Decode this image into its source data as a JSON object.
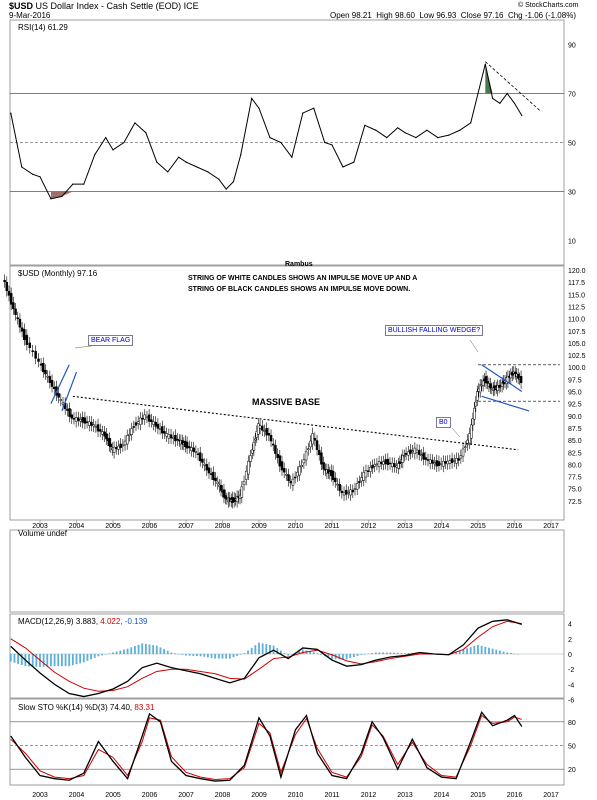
{
  "header": {
    "symbol": "$USD",
    "name": "US Dollar Index - Cash Settle (EOD)",
    "exchange": "ICE",
    "date": "9-Mar-2016",
    "ohlc": {
      "open": "Open 98.21",
      "high": "High 98.60",
      "low": "Low 96.93",
      "close": "Close 97.16",
      "chg": "Chg -1.06 (-1.08%)"
    },
    "credit": "© StockCharts.com"
  },
  "panels": {
    "rsi": {
      "label": "RSI(14) 61.29",
      "ticks": [
        "90",
        "70",
        "50",
        "30",
        "10"
      ],
      "footer": "Rambus"
    },
    "price": {
      "label": "$USD (Monthly) 97.16"
    },
    "volume": {
      "label": "Volume undef"
    },
    "macd": {
      "label_name": "MACD(12,26,9)",
      "label_macd": "3.883,",
      "label_signal": "4.022,",
      "label_hist": "-0.139",
      "ticks": [
        "4",
        "2",
        "0",
        "-2",
        "-4",
        "-6"
      ]
    },
    "sto": {
      "label_name": "Slow STO %K(14) %D(3)",
      "label_k": "74.40,",
      "label_d": "83.31",
      "ticks": [
        "80",
        "50",
        "20"
      ]
    }
  },
  "annotations": {
    "impulse_line1": "STRING OF WHITE CANDLES SHOWS AN IMPULSE MOVE UP AND A",
    "impulse_line2": "STRING OF BLACK CANDLES SHOWS AN IMPULSE MOVE DOWN.",
    "massive_base": "MASSIVE BASE",
    "bear_flag": "BEAR FLAG",
    "bullish_wedge": "BULLISH FALLING WEDGE?",
    "bo": "B0"
  },
  "colors": {
    "accent": "#1f57c8",
    "rsi_oversold": "#a06f6a",
    "rsi_overbought": "#4a7a4a",
    "macd_hist": "#5ab0d8",
    "signal": "#d00000"
  },
  "chart_data": [
    {
      "type": "line",
      "title": "RSI(14) 61.29",
      "x": [
        2002.2,
        2002.5,
        2002.8,
        2003.0,
        2003.3,
        2003.6,
        2003.9,
        2004.2,
        2004.5,
        2004.8,
        2005.0,
        2005.3,
        2005.6,
        2005.9,
        2006.2,
        2006.5,
        2006.8,
        2007.0,
        2007.3,
        2007.6,
        2007.9,
        2008.1,
        2008.3,
        2008.5,
        2008.8,
        2009.0,
        2009.3,
        2009.6,
        2009.9,
        2010.2,
        2010.5,
        2010.8,
        2011.0,
        2011.3,
        2011.6,
        2011.9,
        2012.2,
        2012.5,
        2012.8,
        2013.0,
        2013.3,
        2013.6,
        2013.9,
        2014.2,
        2014.5,
        2014.8,
        2015.0,
        2015.2,
        2015.4,
        2015.6,
        2015.8,
        2016.0,
        2016.2
      ],
      "y": [
        62,
        40,
        37,
        36,
        27,
        28,
        33,
        33,
        45,
        52,
        47,
        50,
        58,
        54,
        42,
        38,
        44,
        42,
        40,
        38,
        35,
        31,
        34,
        45,
        68,
        64,
        52,
        50,
        44,
        62,
        64,
        50,
        49,
        40,
        42,
        57,
        55,
        52,
        56,
        54,
        52,
        55,
        52,
        53,
        55,
        58,
        70,
        82,
        68,
        66,
        70,
        66,
        61
      ],
      "ylim": [
        0,
        100
      ],
      "ref_lines": [
        70,
        50,
        30
      ]
    },
    {
      "type": "line",
      "title": "$USD (Monthly) 97.16",
      "x": [
        2002.0,
        2002.3,
        2002.6,
        2003.0,
        2003.3,
        2003.6,
        2003.9,
        2004.2,
        2004.5,
        2004.8,
        2005.0,
        2005.3,
        2005.6,
        2005.9,
        2006.2,
        2006.5,
        2006.8,
        2007.0,
        2007.3,
        2007.6,
        2007.9,
        2008.1,
        2008.3,
        2008.5,
        2008.8,
        2009.0,
        2009.3,
        2009.6,
        2009.9,
        2010.2,
        2010.5,
        2010.8,
        2011.0,
        2011.3,
        2011.6,
        2011.9,
        2012.2,
        2012.5,
        2012.8,
        2013.0,
        2013.3,
        2013.6,
        2013.9,
        2014.2,
        2014.5,
        2014.8,
        2015.0,
        2015.2,
        2015.4,
        2015.6,
        2015.8,
        2016.0,
        2016.2
      ],
      "y": [
        118.5,
        112,
        106,
        101,
        97,
        93,
        89.5,
        89,
        88,
        86,
        83,
        84,
        88,
        90,
        88,
        86,
        85,
        84,
        82.5,
        79,
        76,
        73,
        72.5,
        73.5,
        82,
        88,
        86,
        80,
        76,
        80,
        86,
        79,
        78,
        74,
        74.5,
        78,
        80,
        80.5,
        79.5,
        82,
        83,
        81,
        80,
        80.5,
        81,
        86,
        95,
        97.5,
        95.5,
        96,
        97.5,
        99,
        97.16
      ],
      "ylim": [
        70,
        120
      ],
      "x_ticks": [
        "2003",
        "2004",
        "2005",
        "2006",
        "2007",
        "2008",
        "2009",
        "2010",
        "2011",
        "2012",
        "2013",
        "2014",
        "2015",
        "2016",
        "2017"
      ],
      "y_ticks": [
        "120.0",
        "117.5",
        "115.0",
        "112.5",
        "110.0",
        "107.5",
        "105.0",
        "102.5",
        "100.0",
        "97.5",
        "95.0",
        "92.5",
        "90.0",
        "87.5",
        "85.0",
        "82.5",
        "80.0",
        "77.5",
        "75.0",
        "72.5"
      ]
    },
    {
      "type": "line",
      "title": "MACD(12,26,9)",
      "x": [
        2002.2,
        2002.6,
        2003.0,
        2003.4,
        2003.8,
        2004.2,
        2004.6,
        2005.0,
        2005.4,
        2005.8,
        2006.2,
        2006.6,
        2007.0,
        2007.4,
        2007.8,
        2008.2,
        2008.6,
        2009.0,
        2009.4,
        2009.8,
        2010.2,
        2010.6,
        2011.0,
        2011.4,
        2011.8,
        2012.2,
        2012.6,
        2013.0,
        2013.4,
        2013.8,
        2014.2,
        2014.6,
        2015.0,
        2015.4,
        2015.8,
        2016.2
      ],
      "series": [
        {
          "name": "MACD",
          "values": [
            1.0,
            -0.8,
            -2.5,
            -4.0,
            -5.2,
            -5.6,
            -5.2,
            -4.6,
            -3.6,
            -1.8,
            -1.2,
            -1.8,
            -2.2,
            -2.6,
            -3.2,
            -3.8,
            -3.2,
            -0.5,
            0.5,
            -0.6,
            0.8,
            0.6,
            -0.8,
            -1.6,
            -1.4,
            -0.8,
            -0.4,
            -0.2,
            0.2,
            0.0,
            -0.1,
            1.2,
            3.4,
            4.3,
            4.5,
            3.9
          ]
        },
        {
          "name": "Signal",
          "values": [
            2.0,
            0.8,
            -0.8,
            -2.4,
            -3.6,
            -4.5,
            -4.9,
            -4.8,
            -4.3,
            -3.2,
            -2.3,
            -2.0,
            -2.0,
            -2.3,
            -2.6,
            -3.2,
            -3.3,
            -2.0,
            -0.6,
            -0.4,
            0.2,
            0.5,
            -0.1,
            -0.9,
            -1.3,
            -1.0,
            -0.6,
            -0.3,
            0.0,
            0.0,
            -0.1,
            0.6,
            2.2,
            3.6,
            4.3,
            4.0
          ]
        }
      ],
      "ylim": [
        -7,
        5
      ]
    },
    {
      "type": "line",
      "title": "Slow STO %K(14) %D(3)",
      "x": [
        2002.2,
        2002.6,
        2003.0,
        2003.4,
        2003.8,
        2004.2,
        2004.6,
        2005.0,
        2005.4,
        2005.8,
        2006.0,
        2006.3,
        2006.6,
        2007.0,
        2007.4,
        2007.8,
        2008.2,
        2008.6,
        2009.0,
        2009.3,
        2009.6,
        2010.0,
        2010.3,
        2010.6,
        2011.0,
        2011.4,
        2011.8,
        2012.1,
        2012.4,
        2012.8,
        2013.2,
        2013.6,
        2014.0,
        2014.4,
        2014.8,
        2015.1,
        2015.4,
        2015.8,
        2016.0,
        2016.2
      ],
      "series": [
        {
          "name": "%K",
          "values": [
            62,
            35,
            12,
            8,
            6,
            15,
            55,
            30,
            8,
            62,
            90,
            80,
            30,
            12,
            8,
            5,
            6,
            25,
            85,
            62,
            10,
            70,
            88,
            40,
            12,
            8,
            40,
            80,
            60,
            20,
            58,
            22,
            10,
            8,
            55,
            92,
            75,
            82,
            88,
            74
          ]
        },
        {
          "name": "%D",
          "values": [
            58,
            40,
            18,
            10,
            8,
            12,
            45,
            35,
            12,
            55,
            85,
            82,
            36,
            16,
            10,
            7,
            8,
            22,
            78,
            66,
            16,
            64,
            84,
            46,
            16,
            10,
            36,
            76,
            62,
            26,
            54,
            26,
            12,
            10,
            50,
            88,
            78,
            80,
            86,
            83
          ]
        }
      ],
      "ylim": [
        0,
        100
      ],
      "ref_lines": [
        80,
        50,
        20
      ]
    }
  ]
}
